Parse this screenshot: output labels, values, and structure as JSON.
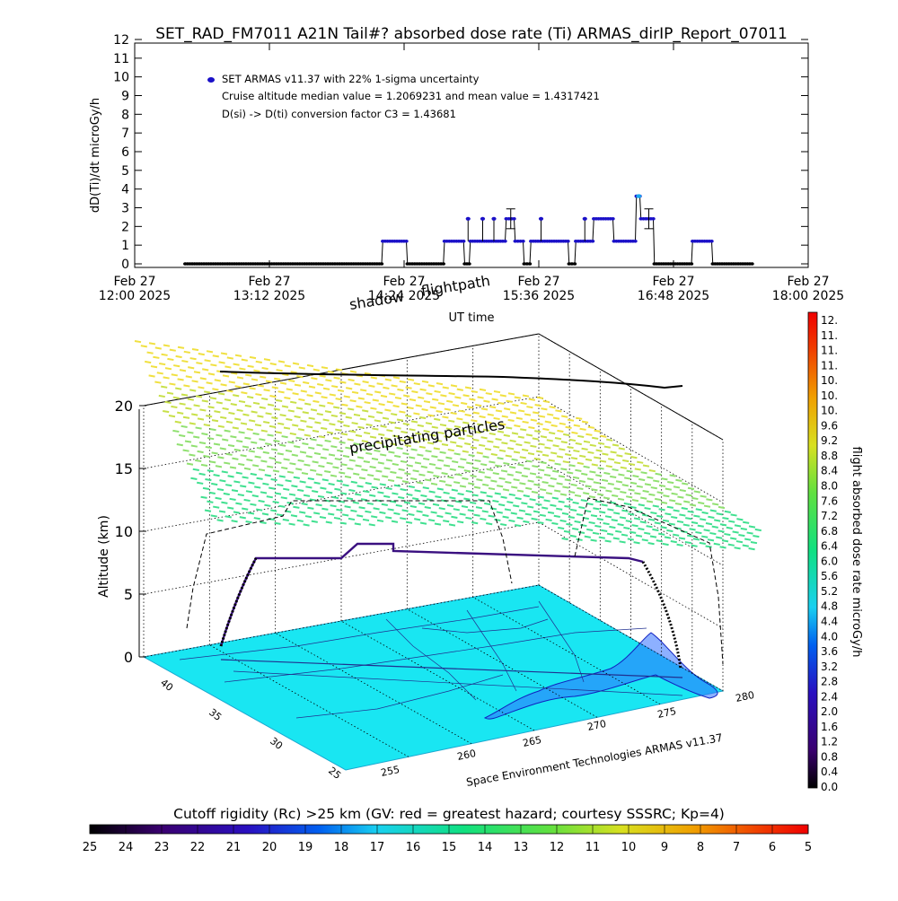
{
  "title": "SET_RAD_FM7011  A21N Tail#? absorbed dose rate (Ti) ARMAS_dirIP_Report_07011",
  "chart_data": [
    {
      "type": "scatter",
      "ylabel": "dD(Ti)/dt microGy/h",
      "xlabel": "UT time",
      "ylim": [
        0,
        12
      ],
      "yticks": [
        "0",
        "1",
        "2",
        "3",
        "4",
        "5",
        "6",
        "7",
        "8",
        "9",
        "10",
        "11",
        "12"
      ],
      "xticks": [
        {
          "line1": "Feb 27",
          "line2": "12:00 2025"
        },
        {
          "line1": "Feb 27",
          "line2": "13:12 2025"
        },
        {
          "line1": "Feb 27",
          "line2": "14:24 2025"
        },
        {
          "line1": "Feb 27",
          "line2": "15:36 2025"
        },
        {
          "line1": "Feb 27",
          "line2": "16:48 2025"
        },
        {
          "line1": "Feb 27",
          "line2": "18:00 2025"
        }
      ],
      "xlim_hours": [
        12.0,
        18.0
      ],
      "legend": [
        "SET ARMAS v11.37 with 22% 1-sigma uncertainty",
        "Cruise altitude median value = 1.2069231 and mean value = 1.4317421",
        "D(si) -> D(ti) conversion factor C3 = 1.43681"
      ],
      "series": [
        {
          "color": "#1a10c8",
          "segments": [
            {
              "x": [
                12.45,
                14.2
              ],
              "y": 0
            },
            {
              "x": [
                14.21,
                14.42
              ],
              "y": 1.21
            },
            {
              "x": [
                14.43,
                14.75
              ],
              "y": 0
            },
            {
              "x": [
                14.76,
                14.93
              ],
              "y": 1.21
            },
            {
              "x": [
                14.94,
                14.98
              ],
              "y": 0
            },
            {
              "x": [
                14.99,
                15.3
              ],
              "y": 1.21
            },
            {
              "x": [
                15.31,
                15.38
              ],
              "y": 2.41
            },
            {
              "x": [
                15.39,
                15.46
              ],
              "y": 1.21
            },
            {
              "x": [
                15.47,
                15.52
              ],
              "y": 0
            },
            {
              "x": [
                15.53,
                15.86
              ],
              "y": 1.21
            },
            {
              "x": [
                15.87,
                15.92
              ],
              "y": 0
            },
            {
              "x": [
                15.93,
                16.08
              ],
              "y": 1.21
            },
            {
              "x": [
                16.09,
                16.26
              ],
              "y": 2.41
            },
            {
              "x": [
                16.27,
                16.46
              ],
              "y": 1.21
            },
            {
              "x": [
                16.47,
                16.5
              ],
              "y": 3.62
            },
            {
              "x": [
                16.51,
                16.62
              ],
              "y": 2.41
            },
            {
              "x": [
                16.63,
                16.96
              ],
              "y": 0
            },
            {
              "x": [
                16.97,
                17.14
              ],
              "y": 1.21
            },
            {
              "x": [
                17.15,
                17.5
              ],
              "y": 0
            }
          ],
          "spikes": [
            {
              "x": 14.97,
              "y": 2.41
            },
            {
              "x": 15.1,
              "y": 2.41
            },
            {
              "x": 15.2,
              "y": 2.41
            },
            {
              "x": 15.62,
              "y": 2.41
            },
            {
              "x": 16.01,
              "y": 2.41
            }
          ],
          "errorbars": [
            {
              "x": 15.35,
              "y": 2.41,
              "err": 0.53
            },
            {
              "x": 16.58,
              "y": 2.41,
              "err": 0.53
            }
          ]
        }
      ]
    },
    {
      "type": "3d-map",
      "zlabel": "Altitude (km)",
      "zticks": [
        "0",
        "5",
        "10",
        "15",
        "20"
      ],
      "lat_ticks": [
        "40",
        "35",
        "30",
        "25"
      ],
      "lon_ticks": [
        "255",
        "260",
        "265",
        "270",
        "275",
        "280"
      ],
      "annotations": [
        "shadow",
        "flightpath",
        "precipitating particles"
      ],
      "credit": "Space Environment Technologies ARMAS v11.37",
      "map_color": "#19e6f2",
      "field_colors": [
        "#f0e040",
        "#c8e048",
        "#90e070",
        "#40e090"
      ]
    }
  ],
  "dose_colorbar": {
    "title": "flight absorbed dose rate microGy/h",
    "labels": [
      "12.",
      "11.",
      "11.",
      "11.",
      "10.",
      "10.",
      "10.",
      "9.6",
      "9.2",
      "8.8",
      "8.4",
      "8.0",
      "7.6",
      "7.2",
      "6.8",
      "6.4",
      "6.0",
      "5.6",
      "5.2",
      "4.8",
      "4.4",
      "4.0",
      "3.6",
      "3.2",
      "2.8",
      "2.4",
      "2.0",
      "1.6",
      "1.2",
      "0.8",
      "0.4",
      "0.0"
    ]
  },
  "rigidity_colorbar": {
    "title": "Cutoff rigidity (Rc) >25 km (GV: red = greatest hazard; courtesy SSSRC; Kp=4)",
    "labels": [
      "25",
      "24",
      "23",
      "22",
      "21",
      "20",
      "19",
      "18",
      "17",
      "16",
      "15",
      "14",
      "13",
      "12",
      "11",
      "10",
      "9",
      "8",
      "7",
      "6",
      "5"
    ]
  }
}
